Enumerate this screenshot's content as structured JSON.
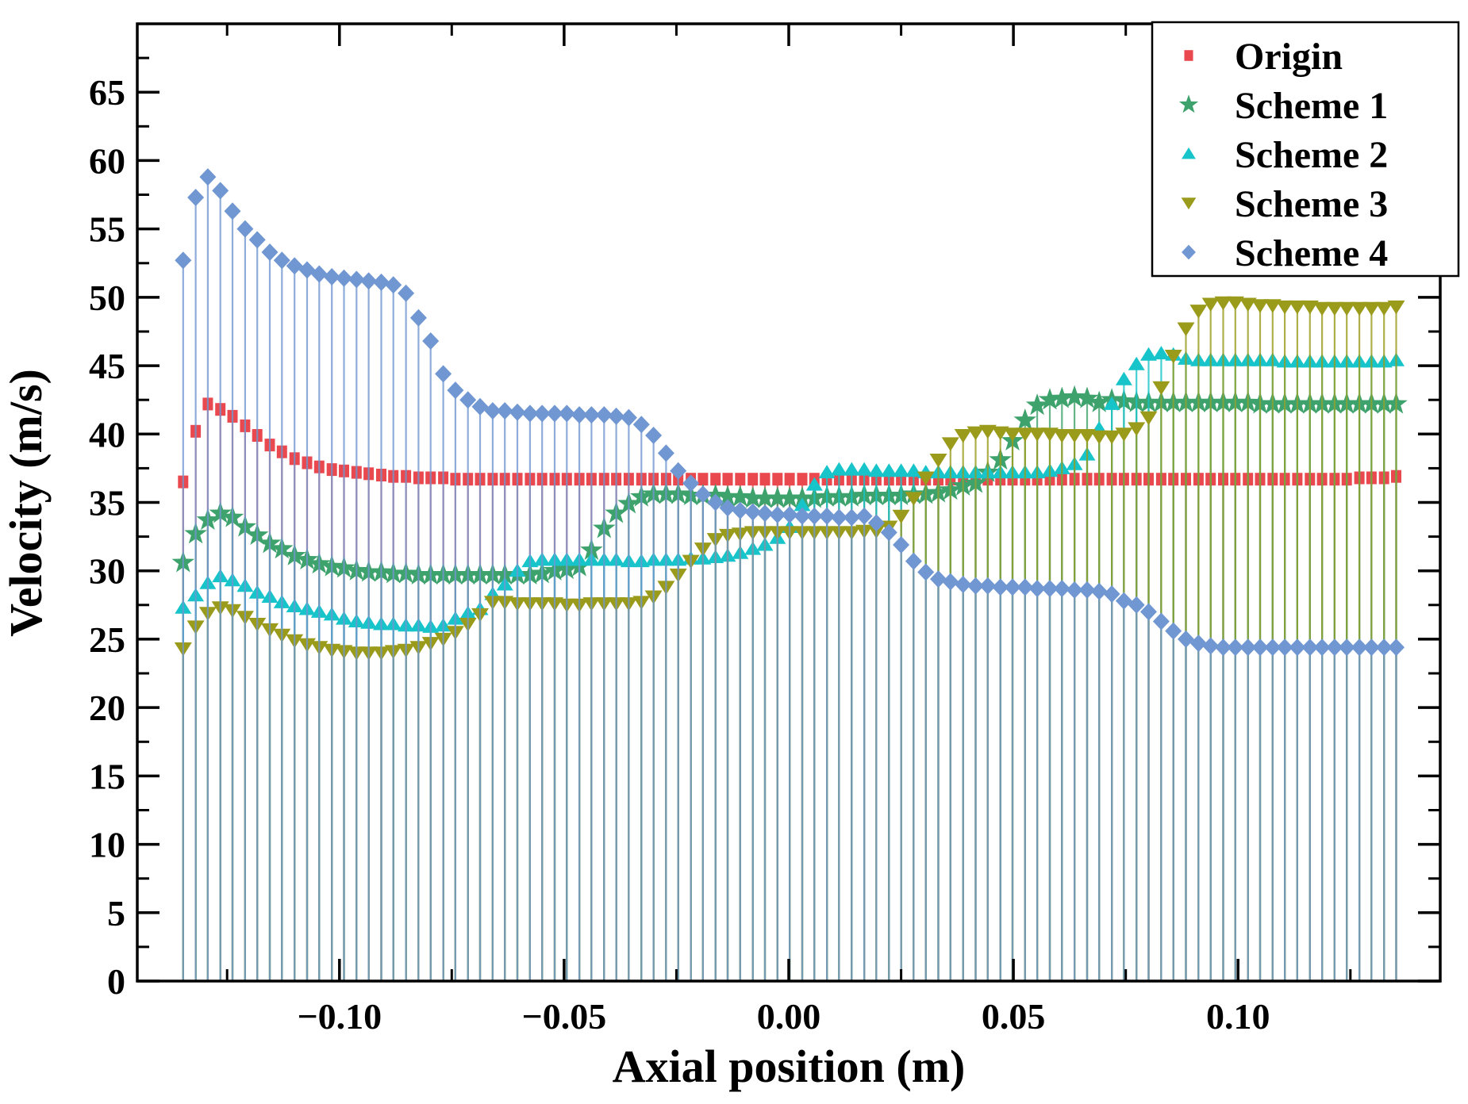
{
  "chart_data": {
    "type": "stem-scatter",
    "title": "",
    "xlabel": "Axial position (m)",
    "ylabel": "Velocity (m/s)",
    "xlim": [
      -0.145,
      0.145
    ],
    "ylim": [
      0,
      70
    ],
    "grid": false,
    "legend_position": "top-right",
    "x_ticks": [
      {
        "v": -0.1,
        "label": "−0.10"
      },
      {
        "v": -0.05,
        "label": "−0.05"
      },
      {
        "v": 0.0,
        "label": "0.00"
      },
      {
        "v": 0.05,
        "label": "0.05"
      },
      {
        "v": 0.1,
        "label": "0.10"
      }
    ],
    "x_minor_ticks": [
      -0.125,
      -0.075,
      -0.025,
      0.025,
      0.075,
      0.125
    ],
    "y_ticks": [
      {
        "v": 0,
        "label": "0"
      },
      {
        "v": 5,
        "label": "5"
      },
      {
        "v": 10,
        "label": "10"
      },
      {
        "v": 15,
        "label": "15"
      },
      {
        "v": 20,
        "label": "20"
      },
      {
        "v": 25,
        "label": "25"
      },
      {
        "v": 30,
        "label": "30"
      },
      {
        "v": 35,
        "label": "35"
      },
      {
        "v": 40,
        "label": "40"
      },
      {
        "v": 45,
        "label": "45"
      },
      {
        "v": 50,
        "label": "50"
      },
      {
        "v": 55,
        "label": "55"
      },
      {
        "v": 60,
        "label": "60"
      },
      {
        "v": 65,
        "label": "65"
      }
    ],
    "y_minor_ticks": [
      2.5,
      7.5,
      12.5,
      17.5,
      22.5,
      27.5,
      32.5,
      37.5,
      42.5,
      47.5,
      52.5,
      57.5,
      62.5,
      67.5
    ],
    "x": [
      -0.1348,
      -0.132,
      -0.1293,
      -0.1265,
      -0.1238,
      -0.121,
      -0.1183,
      -0.1155,
      -0.1128,
      -0.11,
      -0.1072,
      -0.1045,
      -0.1017,
      -0.099,
      -0.0962,
      -0.0935,
      -0.0907,
      -0.088,
      -0.0852,
      -0.0824,
      -0.0797,
      -0.0769,
      -0.0742,
      -0.0714,
      -0.0687,
      -0.0659,
      -0.0632,
      -0.0604,
      -0.0576,
      -0.0549,
      -0.0521,
      -0.0494,
      -0.0466,
      -0.0439,
      -0.0411,
      -0.0384,
      -0.0356,
      -0.0328,
      -0.0301,
      -0.0273,
      -0.0246,
      -0.0218,
      -0.0191,
      -0.0163,
      -0.0136,
      -0.0108,
      -0.008,
      -0.0053,
      -0.0025,
      0.0002,
      0.003,
      0.0057,
      0.0085,
      0.0112,
      0.014,
      0.0168,
      0.0195,
      0.0223,
      0.025,
      0.0278,
      0.0305,
      0.0333,
      0.036,
      0.0388,
      0.0416,
      0.0443,
      0.0471,
      0.0498,
      0.0526,
      0.0553,
      0.0581,
      0.0608,
      0.0636,
      0.0664,
      0.0691,
      0.0719,
      0.0746,
      0.0774,
      0.0801,
      0.0829,
      0.0856,
      0.0884,
      0.0912,
      0.0939,
      0.0967,
      0.0994,
      0.1022,
      0.1049,
      0.1077,
      0.1104,
      0.1132,
      0.116,
      0.1187,
      0.1215,
      0.1242,
      0.127,
      0.1297,
      0.1325,
      0.1352
    ],
    "series": [
      {
        "name": "Origin",
        "marker": "square",
        "color": "#e9494e",
        "values": [
          36.5,
          40.2,
          42.2,
          41.8,
          41.3,
          40.6,
          39.9,
          39.2,
          38.7,
          38.2,
          37.9,
          37.6,
          37.4,
          37.3,
          37.2,
          37.1,
          37.0,
          36.9,
          36.9,
          36.8,
          36.8,
          36.8,
          36.7,
          36.7,
          36.7,
          36.7,
          36.7,
          36.7,
          36.7,
          36.7,
          36.7,
          36.7,
          36.7,
          36.7,
          36.7,
          36.7,
          36.7,
          36.7,
          36.7,
          36.7,
          36.7,
          36.7,
          36.7,
          36.7,
          36.7,
          36.7,
          36.7,
          36.7,
          36.7,
          36.7,
          36.7,
          36.7,
          36.7,
          36.7,
          36.7,
          36.7,
          36.7,
          36.7,
          36.7,
          36.7,
          36.7,
          36.7,
          36.7,
          36.7,
          36.7,
          36.7,
          36.7,
          36.7,
          36.7,
          36.7,
          36.7,
          36.7,
          36.7,
          36.7,
          36.7,
          36.7,
          36.7,
          36.7,
          36.7,
          36.7,
          36.7,
          36.7,
          36.7,
          36.7,
          36.7,
          36.7,
          36.7,
          36.7,
          36.7,
          36.7,
          36.7,
          36.7,
          36.7,
          36.7,
          36.7,
          36.8,
          36.8,
          36.8,
          36.9
        ]
      },
      {
        "name": "Scheme 1",
        "marker": "star",
        "color": "#3ea26c",
        "values": [
          30.6,
          32.7,
          33.7,
          34.2,
          33.9,
          33.2,
          32.6,
          32.0,
          31.6,
          31.1,
          30.8,
          30.5,
          30.3,
          30.2,
          30.0,
          29.9,
          29.9,
          29.8,
          29.8,
          29.7,
          29.7,
          29.7,
          29.7,
          29.7,
          29.7,
          29.7,
          29.7,
          29.7,
          29.7,
          29.8,
          30.0,
          30.1,
          30.3,
          31.5,
          33.1,
          34.2,
          34.9,
          35.4,
          35.6,
          35.6,
          35.6,
          35.5,
          35.5,
          35.5,
          35.4,
          35.4,
          35.3,
          35.3,
          35.3,
          35.3,
          35.3,
          35.3,
          35.4,
          35.4,
          35.4,
          35.5,
          35.5,
          35.5,
          35.5,
          35.6,
          35.6,
          35.7,
          35.9,
          36.2,
          36.4,
          37.2,
          38.1,
          39.5,
          41.0,
          42.1,
          42.5,
          42.6,
          42.7,
          42.6,
          42.3,
          42.5,
          42.4,
          42.3,
          42.3,
          42.3,
          42.3,
          42.3,
          42.3,
          42.3,
          42.3,
          42.3,
          42.3,
          42.2,
          42.2,
          42.2,
          42.2,
          42.2,
          42.2,
          42.2,
          42.2,
          42.2,
          42.2,
          42.2,
          42.2
        ]
      },
      {
        "name": "Scheme 2",
        "marker": "triangle-up",
        "color": "#17c4c9",
        "values": [
          27.3,
          28.2,
          29.1,
          29.6,
          29.3,
          28.9,
          28.4,
          28.1,
          27.7,
          27.4,
          27.2,
          27.0,
          26.8,
          26.5,
          26.3,
          26.2,
          26.1,
          26.1,
          26.0,
          26.0,
          25.9,
          26.0,
          26.5,
          26.9,
          27.2,
          28.3,
          29.0,
          30.0,
          30.7,
          30.8,
          30.8,
          30.8,
          30.8,
          30.8,
          30.8,
          30.8,
          30.7,
          30.7,
          30.8,
          30.8,
          30.8,
          30.9,
          30.9,
          31.0,
          31.1,
          31.3,
          31.6,
          31.9,
          32.4,
          33.2,
          34.8,
          36.3,
          37.2,
          37.4,
          37.4,
          37.4,
          37.3,
          37.3,
          37.3,
          37.3,
          37.2,
          37.2,
          37.2,
          37.2,
          37.2,
          37.2,
          37.2,
          37.2,
          37.2,
          37.2,
          37.3,
          37.5,
          37.8,
          38.5,
          40.4,
          42.2,
          44.0,
          45.1,
          45.8,
          45.9,
          45.8,
          45.5,
          45.4,
          45.4,
          45.4,
          45.4,
          45.4,
          45.4,
          45.4,
          45.3,
          45.3,
          45.3,
          45.3,
          45.3,
          45.3,
          45.3,
          45.3,
          45.3,
          45.4
        ]
      },
      {
        "name": "Scheme 3",
        "marker": "triangle-down",
        "color": "#9a9b1b",
        "values": [
          24.3,
          25.9,
          26.9,
          27.3,
          27.1,
          26.6,
          26.1,
          25.7,
          25.3,
          24.9,
          24.6,
          24.4,
          24.2,
          24.1,
          24.0,
          24.0,
          24.0,
          24.1,
          24.2,
          24.4,
          24.7,
          25.0,
          25.5,
          26.1,
          26.8,
          27.7,
          27.7,
          27.6,
          27.6,
          27.6,
          27.6,
          27.5,
          27.5,
          27.6,
          27.6,
          27.6,
          27.6,
          27.7,
          28.1,
          28.8,
          29.7,
          30.7,
          31.6,
          32.3,
          32.6,
          32.7,
          32.8,
          32.8,
          32.8,
          32.8,
          32.8,
          32.8,
          32.8,
          32.8,
          32.8,
          32.9,
          32.9,
          33.2,
          34.0,
          35.3,
          36.8,
          38.1,
          39.3,
          39.9,
          40.1,
          40.2,
          40.1,
          40.0,
          40.0,
          40.0,
          40.0,
          39.9,
          39.9,
          39.9,
          39.8,
          39.8,
          40.0,
          40.4,
          41.2,
          43.4,
          45.7,
          47.7,
          49.0,
          49.5,
          49.6,
          49.6,
          49.5,
          49.4,
          49.4,
          49.3,
          49.3,
          49.3,
          49.2,
          49.2,
          49.2,
          49.2,
          49.2,
          49.2,
          49.3
        ]
      },
      {
        "name": "Scheme 4",
        "marker": "diamond",
        "color": "#7097d1",
        "values": [
          52.7,
          57.3,
          58.8,
          57.8,
          56.3,
          55.0,
          54.2,
          53.3,
          52.7,
          52.3,
          52.0,
          51.7,
          51.5,
          51.4,
          51.3,
          51.2,
          51.1,
          50.9,
          50.3,
          48.5,
          46.8,
          44.4,
          43.2,
          42.5,
          42.0,
          41.7,
          41.7,
          41.6,
          41.5,
          41.5,
          41.5,
          41.5,
          41.4,
          41.4,
          41.4,
          41.3,
          41.2,
          40.7,
          39.9,
          38.6,
          37.3,
          36.4,
          35.6,
          35.0,
          34.6,
          34.4,
          34.3,
          34.2,
          34.1,
          34.1,
          34.0,
          34.0,
          34.0,
          33.9,
          33.9,
          34.0,
          33.5,
          32.8,
          31.9,
          30.7,
          29.9,
          29.4,
          29.2,
          29.0,
          28.9,
          28.9,
          28.8,
          28.8,
          28.8,
          28.7,
          28.7,
          28.7,
          28.6,
          28.6,
          28.5,
          28.3,
          27.8,
          27.5,
          27.0,
          26.3,
          25.6,
          25.0,
          24.7,
          24.5,
          24.4,
          24.4,
          24.4,
          24.4,
          24.4,
          24.4,
          24.4,
          24.4,
          24.4,
          24.4,
          24.4,
          24.4,
          24.4,
          24.4,
          24.4
        ]
      }
    ]
  },
  "layout": {
    "background": "#ffffff",
    "axis_color": "#000000",
    "legend_border_color": "#000000"
  }
}
